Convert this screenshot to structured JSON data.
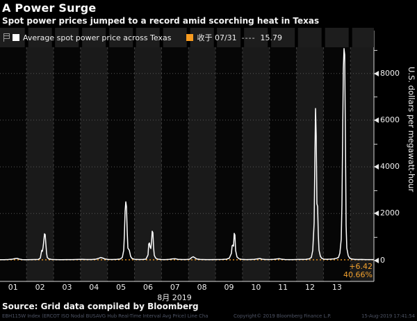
{
  "header": {
    "title": "A Power Surge",
    "subtitle": "Spot power prices jumped to a record amid scorching heat in Texas"
  },
  "legend": {
    "items": [
      {
        "swatch_color": "#ffffff",
        "label": "Average spot power price across Texas"
      },
      {
        "swatch_color": "#f79b20",
        "label": "收于 07/31",
        "dash_sample": "----",
        "value": "15.79"
      }
    ]
  },
  "y_axis": {
    "title": "U.S. dollars per megawatt-hour",
    "major_ticks": [
      0,
      2000,
      4000,
      6000,
      8000
    ],
    "minor_ticks": [
      1000,
      3000,
      5000,
      7000,
      9000
    ]
  },
  "x_axis": {
    "day_labels": [
      "01",
      "02",
      "03",
      "04",
      "05",
      "06",
      "07",
      "08",
      "09",
      "10",
      "11",
      "12",
      "13"
    ],
    "month_label": "8月 2019",
    "num_day_bands": 14
  },
  "annotations": {
    "last_change": "+6.42",
    "last_change_pct": "40.66%"
  },
  "footer": {
    "source": "Source: Grid data compiled by Bloomberg",
    "ticker_line": "EBH115W Index (ERCOT ISO Nodal BUSAVG Hub Real-Time Interval Avg Price) Line Cha",
    "copyright": "Copyright© 2019 Bloomberg Finance L.P.",
    "timestamp": "15-Aug-2019 17:41:54"
  },
  "colors": {
    "background": "#000000",
    "band_light": "#1a1a1a",
    "band_dark": "#060606",
    "grid_vline": "#3d3d3d",
    "grid_hline": "#575757",
    "axis": "#d8d8d8",
    "price_line": "#ffffff",
    "accent_orange": "#f79b20"
  },
  "chart_data": {
    "type": "line",
    "title": "A Power Surge",
    "xlabel": "8月 2019",
    "ylabel": "U.S. dollars per megawatt-hour",
    "ylim": [
      0,
      9300
    ],
    "yticks": [
      0,
      2000,
      4000,
      6000,
      8000
    ],
    "legend_position": "top",
    "grid": "dotted horizontal at yticks, dashed vertical at day boundaries",
    "series": [
      {
        "name": "Average spot power price across Texas",
        "color": "#ffffff"
      }
    ],
    "reference_line": {
      "name": "收于 07/31",
      "value": 15.79,
      "color": "#f79b20",
      "style": "dotted"
    },
    "daily_peaks": [
      {
        "date": "08/01",
        "peak": 78
      },
      {
        "date": "08/02",
        "peak": 1130
      },
      {
        "date": "08/03",
        "peak": 36
      },
      {
        "date": "08/04",
        "peak": 115
      },
      {
        "date": "08/05",
        "peak": 2500
      },
      {
        "date": "08/06",
        "peak": 1240
      },
      {
        "date": "08/07",
        "peak": 62
      },
      {
        "date": "08/08",
        "peak": 148
      },
      {
        "date": "08/09",
        "peak": 1150
      },
      {
        "date": "08/10",
        "peak": 70
      },
      {
        "date": "08/11",
        "peak": 64
      },
      {
        "date": "08/12",
        "peak": 6500
      },
      {
        "date": "08/13",
        "peak": 9065
      }
    ],
    "last_change": 6.42,
    "last_change_pct": 40.66,
    "points_units": "x = pixel position across Aug 01-14 bands (0-538), y = USD per MWh",
    "points": [
      [
        0,
        25
      ],
      [
        6,
        22
      ],
      [
        12,
        30
      ],
      [
        18,
        45
      ],
      [
        22,
        70
      ],
      [
        25,
        78
      ],
      [
        28,
        45
      ],
      [
        32,
        28
      ],
      [
        38,
        24
      ],
      [
        44,
        28
      ],
      [
        50,
        30
      ],
      [
        55,
        34
      ],
      [
        58,
        90
      ],
      [
        60,
        420
      ],
      [
        61,
        380
      ],
      [
        62,
        560
      ],
      [
        63,
        820
      ],
      [
        64,
        1130
      ],
      [
        65,
        1100
      ],
      [
        66,
        700
      ],
      [
        67,
        300
      ],
      [
        68,
        120
      ],
      [
        70,
        60
      ],
      [
        74,
        34
      ],
      [
        80,
        26
      ],
      [
        88,
        24
      ],
      [
        96,
        28
      ],
      [
        104,
        26
      ],
      [
        112,
        32
      ],
      [
        118,
        36
      ],
      [
        124,
        30
      ],
      [
        132,
        30
      ],
      [
        138,
        46
      ],
      [
        142,
        80
      ],
      [
        145,
        115
      ],
      [
        148,
        90
      ],
      [
        151,
        50
      ],
      [
        156,
        34
      ],
      [
        162,
        30
      ],
      [
        168,
        36
      ],
      [
        173,
        50
      ],
      [
        176,
        120
      ],
      [
        178,
        420
      ],
      [
        179,
        1100
      ],
      [
        180,
        2100
      ],
      [
        181,
        2500
      ],
      [
        182,
        2280
      ],
      [
        183,
        1250
      ],
      [
        184,
        520
      ],
      [
        186,
        430
      ],
      [
        188,
        160
      ],
      [
        190,
        70
      ],
      [
        194,
        40
      ],
      [
        200,
        30
      ],
      [
        206,
        34
      ],
      [
        210,
        44
      ],
      [
        213,
        230
      ],
      [
        214,
        690
      ],
      [
        215,
        740
      ],
      [
        216,
        560
      ],
      [
        217,
        500
      ],
      [
        218,
        760
      ],
      [
        219,
        1240
      ],
      [
        220,
        1180
      ],
      [
        221,
        540
      ],
      [
        222,
        210
      ],
      [
        224,
        90
      ],
      [
        227,
        44
      ],
      [
        232,
        30
      ],
      [
        238,
        28
      ],
      [
        244,
        40
      ],
      [
        248,
        56
      ],
      [
        252,
        62
      ],
      [
        256,
        40
      ],
      [
        262,
        30
      ],
      [
        268,
        30
      ],
      [
        273,
        44
      ],
      [
        276,
        120
      ],
      [
        278,
        148
      ],
      [
        280,
        110
      ],
      [
        283,
        50
      ],
      [
        288,
        32
      ],
      [
        296,
        26
      ],
      [
        304,
        28
      ],
      [
        312,
        30
      ],
      [
        320,
        34
      ],
      [
        326,
        44
      ],
      [
        330,
        90
      ],
      [
        333,
        300
      ],
      [
        334,
        620
      ],
      [
        335,
        650
      ],
      [
        336,
        600
      ],
      [
        337,
        1150
      ],
      [
        338,
        1080
      ],
      [
        339,
        420
      ],
      [
        341,
        140
      ],
      [
        344,
        60
      ],
      [
        348,
        36
      ],
      [
        354,
        28
      ],
      [
        360,
        30
      ],
      [
        366,
        36
      ],
      [
        371,
        60
      ],
      [
        374,
        70
      ],
      [
        377,
        46
      ],
      [
        382,
        30
      ],
      [
        388,
        30
      ],
      [
        394,
        40
      ],
      [
        399,
        58
      ],
      [
        402,
        64
      ],
      [
        405,
        46
      ],
      [
        410,
        30
      ],
      [
        416,
        26
      ],
      [
        422,
        28
      ],
      [
        428,
        32
      ],
      [
        434,
        34
      ],
      [
        440,
        38
      ],
      [
        445,
        60
      ],
      [
        448,
        120
      ],
      [
        450,
        420
      ],
      [
        452,
        1600
      ],
      [
        453,
        4200
      ],
      [
        454,
        6500
      ],
      [
        455,
        5300
      ],
      [
        456,
        2420
      ],
      [
        457,
        2300
      ],
      [
        458,
        1100
      ],
      [
        459,
        430
      ],
      [
        461,
        170
      ],
      [
        463,
        80
      ],
      [
        466,
        46
      ],
      [
        470,
        38
      ],
      [
        475,
        44
      ],
      [
        480,
        56
      ],
      [
        484,
        80
      ],
      [
        487,
        120
      ],
      [
        489,
        300
      ],
      [
        491,
        900
      ],
      [
        492,
        2400
      ],
      [
        493,
        5200
      ],
      [
        494,
        8200
      ],
      [
        495,
        9065
      ],
      [
        496,
        8800
      ],
      [
        497,
        5200
      ],
      [
        498,
        1500
      ],
      [
        499,
        520
      ],
      [
        501,
        200
      ],
      [
        503,
        90
      ],
      [
        506,
        50
      ],
      [
        510,
        36
      ],
      [
        515,
        30
      ],
      [
        520,
        32
      ],
      [
        526,
        28
      ],
      [
        532,
        26
      ],
      [
        538,
        28
      ]
    ]
  }
}
